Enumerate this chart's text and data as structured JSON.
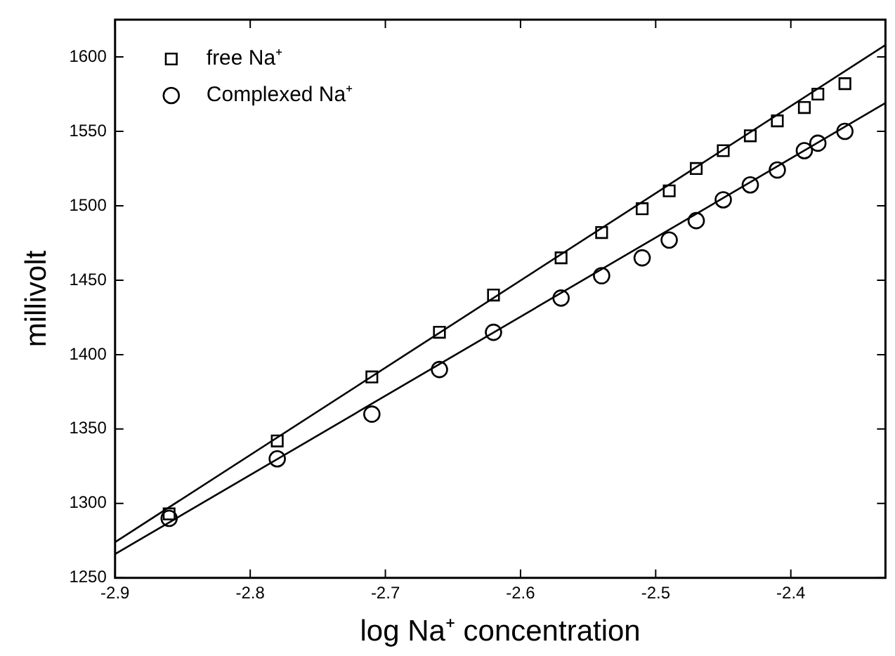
{
  "chart_data": {
    "type": "scatter",
    "xlabel": "log Na⁺ concentration",
    "ylabel": "millivolt",
    "xlim": [
      -2.9,
      -2.33
    ],
    "xticks": [
      -2.9,
      -2.8,
      -2.7,
      -2.6,
      -2.5,
      -2.4
    ],
    "ylim": [
      1250,
      1625
    ],
    "yticks": [
      1250,
      1300,
      1350,
      1400,
      1450,
      1500,
      1550,
      1600
    ],
    "grid": false,
    "legend": "top left",
    "series": [
      {
        "name": "free Na⁺",
        "color": "#000000",
        "marker": "square",
        "x": [
          -2.86,
          -2.78,
          -2.71,
          -2.66,
          -2.62,
          -2.57,
          -2.54,
          -2.51,
          -2.49,
          -2.47,
          -2.45,
          -2.43,
          -2.41,
          -2.39,
          -2.38,
          -2.36
        ],
        "values": [
          1293,
          1342,
          1385,
          1415,
          1440,
          1465,
          1482,
          1498,
          1510,
          1525,
          1537,
          1547,
          1557,
          1566,
          1575,
          1582
        ]
      },
      {
        "name": "Complexed Na⁺",
        "color": "#000000",
        "marker": "circle",
        "x": [
          -2.86,
          -2.78,
          -2.71,
          -2.66,
          -2.62,
          -2.57,
          -2.54,
          -2.51,
          -2.49,
          -2.47,
          -2.45,
          -2.43,
          -2.41,
          -2.39,
          -2.38,
          -2.36
        ],
        "values": [
          1290,
          1330,
          1360,
          1390,
          1415,
          1438,
          1453,
          1465,
          1477,
          1490,
          1504,
          1514,
          1524,
          1537,
          1542,
          1550
        ]
      },
      {
        "type": "line",
        "color": "#000000",
        "marker": "none",
        "x": [
          -2.9,
          -2.33
        ],
        "values": [
          1274,
          1608
        ]
      },
      {
        "type": "line",
        "color": "#000000",
        "marker": "none",
        "x": [
          -2.9,
          -2.33
        ],
        "values": [
          1266,
          1569
        ]
      }
    ]
  }
}
